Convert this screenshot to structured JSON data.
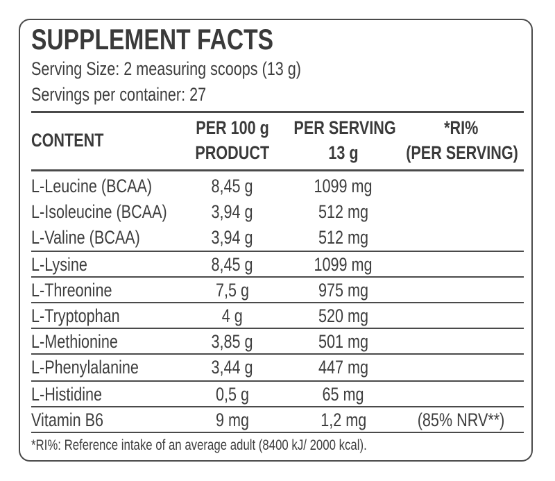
{
  "title": "SUPPLEMENT FACTS",
  "serving_size": "Serving Size: 2 measuring scoops (13 g)",
  "servings_per_container": "Servings per container: 27",
  "headers": {
    "content": "CONTENT",
    "per100_l1": "PER 100 g",
    "per100_l2": "PRODUCT",
    "perserving_l1": "PER SERVING",
    "perserving_l2": "13 g",
    "ri_l1": "*RI%",
    "ri_l2": "(PER SERVING)"
  },
  "rows": [
    {
      "name": "L-Leucine (BCAA)",
      "per100": "8,45 g",
      "serving": "1099 mg",
      "ri": ""
    },
    {
      "name": "L-Isoleucine (BCAA)",
      "per100": "3,94 g",
      "serving": "512 mg",
      "ri": ""
    },
    {
      "name": "L-Valine (BCAA)",
      "per100": "3,94 g",
      "serving": "512 mg",
      "ri": ""
    },
    {
      "name": "L-Lysine",
      "per100": "8,45 g",
      "serving": "1099 mg",
      "ri": ""
    },
    {
      "name": "L-Threonine",
      "per100": "7,5 g",
      "serving": "975 mg",
      "ri": ""
    },
    {
      "name": "L-Tryptophan",
      "per100": "4 g",
      "serving": "520 mg",
      "ri": ""
    },
    {
      "name": "L-Methionine",
      "per100": "3,85 g",
      "serving": "501 mg",
      "ri": ""
    },
    {
      "name": "L-Phenylalanine",
      "per100": "3,44 g",
      "serving": "447 mg",
      "ri": ""
    },
    {
      "name": "L-Histidine",
      "per100": "0,5 g",
      "serving": "65 mg",
      "ri": ""
    },
    {
      "name": "Vitamin B6",
      "per100": "9 mg",
      "serving": "1,2 mg",
      "ri": "(85% NRV**)"
    }
  ],
  "footnote": "*RI%: Reference intake of an average adult (8400 kJ/ 2000 kcal)."
}
